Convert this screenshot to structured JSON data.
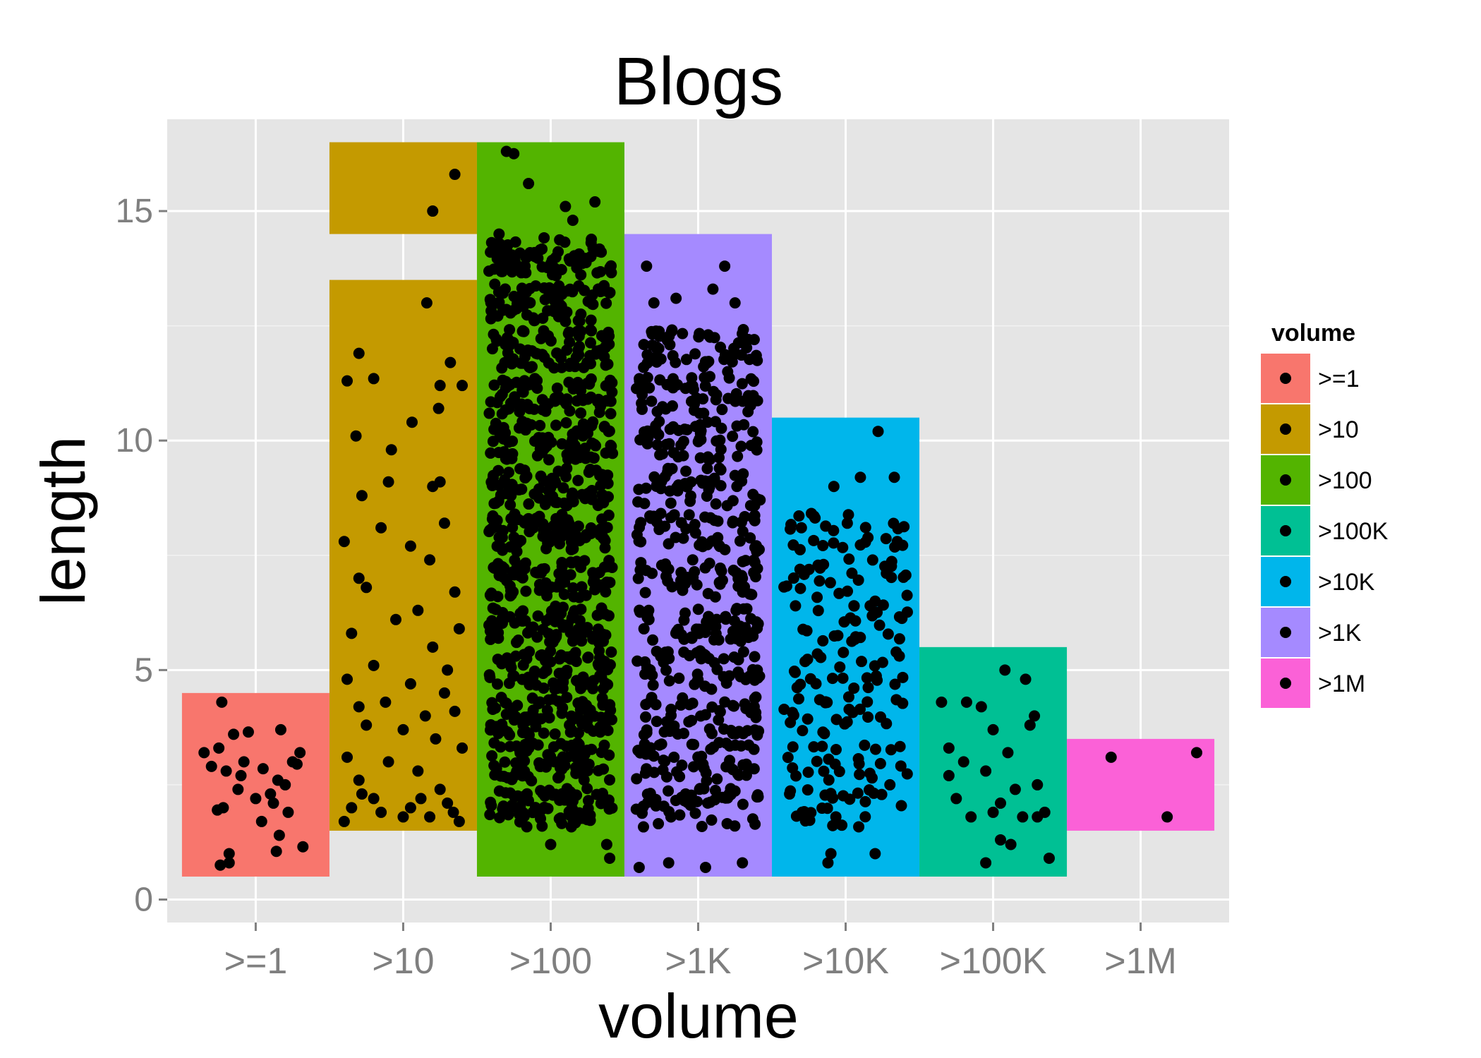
{
  "chart_data": {
    "type": "scatter",
    "title": "Blogs",
    "xlabel": "volume",
    "ylabel": "length",
    "ylim": [
      -0.5,
      17.0
    ],
    "yticks": [
      0,
      5,
      10,
      15
    ],
    "grid": true,
    "categories": [
      ">=1",
      ">10",
      ">100",
      ">1K",
      ">10K",
      ">100K",
      ">1M"
    ],
    "legend": {
      "title": "volume",
      "position": "right",
      "items": [
        {
          "label": ">=1",
          "color": "#F8766D"
        },
        {
          "label": ">10",
          "color": "#C49A00"
        },
        {
          "label": ">100",
          "color": "#53B400"
        },
        {
          "label": ">100K",
          "color": "#00C094"
        },
        {
          "label": ">10K",
          "color": "#00B6EB"
        },
        {
          "label": ">1K",
          "color": "#A58AFF"
        },
        {
          "label": ">1M",
          "color": "#FB61D7"
        }
      ]
    },
    "ranges": [
      {
        "category": ">=1",
        "color": "#F8766D",
        "blocks": [
          [
            0.5,
            4.5
          ]
        ],
        "density": 0
      },
      {
        "category": ">10",
        "color": "#C49A00",
        "blocks": [
          [
            1.5,
            13.5
          ],
          [
            14.5,
            16.5
          ]
        ],
        "density": 0
      },
      {
        "category": ">100",
        "color": "#53B400",
        "blocks": [
          [
            0.5,
            16.5
          ]
        ],
        "density": 3
      },
      {
        "category": ">1K",
        "color": "#A58AFF",
        "blocks": [
          [
            0.5,
            14.5
          ]
        ],
        "density": 2
      },
      {
        "category": ">10K",
        "color": "#00B6EB",
        "blocks": [
          [
            0.5,
            10.5
          ]
        ],
        "density": 1
      },
      {
        "category": ">100K",
        "color": "#00C094",
        "blocks": [
          [
            0.5,
            5.5
          ]
        ],
        "density": 0
      },
      {
        "category": ">1M",
        "color": "#FB61D7",
        "blocks": [
          [
            1.5,
            3.5
          ]
        ],
        "density": 0
      }
    ],
    "series": [
      {
        "category": ">=1",
        "points": [
          [
            -0.23,
            4.3
          ],
          [
            -0.35,
            3.2
          ],
          [
            -0.25,
            3.3
          ],
          [
            -0.15,
            3.6
          ],
          [
            -0.05,
            3.65
          ],
          [
            0.17,
            3.7
          ],
          [
            0.3,
            3.2
          ],
          [
            0.25,
            3.0
          ],
          [
            -0.3,
            2.9
          ],
          [
            -0.2,
            2.8
          ],
          [
            -0.1,
            2.7
          ],
          [
            0.05,
            2.85
          ],
          [
            0.15,
            2.6
          ],
          [
            0.28,
            2.95
          ],
          [
            -0.22,
            2.0
          ],
          [
            -0.12,
            2.4
          ],
          [
            0.0,
            2.2
          ],
          [
            0.12,
            2.1
          ],
          [
            0.22,
            1.9
          ],
          [
            -0.26,
            1.95
          ],
          [
            0.04,
            1.7
          ],
          [
            0.16,
            1.4
          ],
          [
            -0.18,
            1.0
          ],
          [
            0.14,
            1.05
          ],
          [
            0.32,
            1.15
          ],
          [
            -0.24,
            0.75
          ],
          [
            -0.18,
            0.8
          ],
          [
            0.1,
            2.3
          ],
          [
            -0.08,
            3.0
          ],
          [
            0.2,
            2.5
          ]
        ]
      },
      {
        "category": ">10",
        "points": [
          [
            0.35,
            15.8
          ],
          [
            0.2,
            15.0
          ],
          [
            0.16,
            13.0
          ],
          [
            -0.3,
            11.9
          ],
          [
            -0.38,
            11.3
          ],
          [
            -0.2,
            11.35
          ],
          [
            0.32,
            11.7
          ],
          [
            0.25,
            11.2
          ],
          [
            0.4,
            11.2
          ],
          [
            0.24,
            10.7
          ],
          [
            0.06,
            10.4
          ],
          [
            -0.32,
            10.1
          ],
          [
            -0.08,
            9.8
          ],
          [
            0.2,
            9.0
          ],
          [
            0.25,
            9.1
          ],
          [
            -0.28,
            8.8
          ],
          [
            -0.1,
            9.1
          ],
          [
            0.28,
            8.2
          ],
          [
            -0.4,
            7.8
          ],
          [
            -0.15,
            8.1
          ],
          [
            0.05,
            7.7
          ],
          [
            0.18,
            7.4
          ],
          [
            -0.3,
            7.0
          ],
          [
            0.35,
            6.7
          ],
          [
            0.1,
            6.3
          ],
          [
            -0.25,
            6.8
          ],
          [
            -0.05,
            6.1
          ],
          [
            0.38,
            5.9
          ],
          [
            -0.35,
            5.8
          ],
          [
            0.2,
            5.5
          ],
          [
            -0.2,
            5.1
          ],
          [
            0.3,
            5.0
          ],
          [
            -0.38,
            4.8
          ],
          [
            0.05,
            4.7
          ],
          [
            0.28,
            4.5
          ],
          [
            -0.3,
            4.2
          ],
          [
            -0.12,
            4.3
          ],
          [
            0.15,
            4.0
          ],
          [
            0.35,
            4.1
          ],
          [
            -0.25,
            3.8
          ],
          [
            0.0,
            3.7
          ],
          [
            0.22,
            3.5
          ],
          [
            -0.38,
            3.1
          ],
          [
            -0.1,
            3.0
          ],
          [
            0.4,
            3.3
          ],
          [
            0.1,
            2.8
          ],
          [
            -0.3,
            2.6
          ],
          [
            0.25,
            2.4
          ],
          [
            -0.2,
            2.2
          ],
          [
            0.05,
            2.0
          ],
          [
            0.3,
            2.1
          ],
          [
            -0.35,
            2.0
          ],
          [
            -0.15,
            1.9
          ],
          [
            0.18,
            1.8
          ],
          [
            0.38,
            1.7
          ],
          [
            -0.4,
            1.7
          ],
          [
            0.0,
            1.8
          ],
          [
            -0.28,
            2.3
          ],
          [
            0.12,
            2.2
          ],
          [
            0.34,
            1.9
          ]
        ]
      },
      {
        "category": ">100",
        "points": [
          [
            -0.3,
            16.3
          ],
          [
            -0.25,
            16.25
          ],
          [
            -0.15,
            15.6
          ],
          [
            0.3,
            15.2
          ],
          [
            0.1,
            15.1
          ],
          [
            0.15,
            14.8
          ],
          [
            -0.35,
            14.5
          ],
          [
            0.38,
            1.2
          ],
          [
            0.4,
            0.9
          ],
          [
            0.0,
            1.2
          ]
        ]
      },
      {
        "category": ">1K",
        "points": [
          [
            -0.35,
            13.8
          ],
          [
            0.18,
            13.8
          ],
          [
            0.1,
            13.3
          ],
          [
            -0.3,
            13.0
          ],
          [
            -0.15,
            13.1
          ],
          [
            0.25,
            13.0
          ],
          [
            0.38,
            12.2
          ],
          [
            -0.28,
            12.0
          ],
          [
            -0.38,
            11.0
          ],
          [
            0.2,
            11.5
          ],
          [
            -0.4,
            0.7
          ],
          [
            -0.2,
            0.8
          ],
          [
            0.05,
            0.7
          ],
          [
            0.3,
            0.8
          ]
        ]
      },
      {
        "category": ">10K",
        "points": [
          [
            0.22,
            10.2
          ],
          [
            -0.08,
            9.0
          ],
          [
            0.1,
            9.2
          ],
          [
            0.33,
            9.2
          ],
          [
            -0.3,
            8.1
          ],
          [
            0.35,
            7.8
          ],
          [
            -0.15,
            7.3
          ],
          [
            0.2,
            6.5
          ],
          [
            -0.1,
            1.0
          ],
          [
            -0.12,
            0.8
          ],
          [
            0.2,
            1.0
          ],
          [
            -0.38,
            2.3
          ],
          [
            0.3,
            2.5
          ]
        ]
      },
      {
        "category": ">100K",
        "points": [
          [
            -0.35,
            4.3
          ],
          [
            -0.18,
            4.3
          ],
          [
            -0.08,
            4.2
          ],
          [
            0.08,
            5.0
          ],
          [
            0.22,
            4.8
          ],
          [
            0.25,
            3.8
          ],
          [
            0.28,
            4.0
          ],
          [
            -0.3,
            3.3
          ],
          [
            -0.2,
            3.0
          ],
          [
            0.0,
            3.7
          ],
          [
            0.1,
            3.2
          ],
          [
            -0.05,
            2.8
          ],
          [
            0.15,
            2.4
          ],
          [
            0.3,
            2.5
          ],
          [
            -0.25,
            2.2
          ],
          [
            0.0,
            1.9
          ],
          [
            0.2,
            1.8
          ],
          [
            0.35,
            1.9
          ],
          [
            -0.15,
            1.8
          ],
          [
            0.05,
            1.3
          ],
          [
            0.12,
            1.2
          ],
          [
            0.38,
            0.9
          ],
          [
            0.3,
            1.8
          ],
          [
            -0.3,
            2.7
          ],
          [
            0.05,
            2.1
          ],
          [
            -0.05,
            0.8
          ]
        ]
      },
      {
        "category": ">1M",
        "points": [
          [
            -0.2,
            3.1
          ],
          [
            0.18,
            1.8
          ],
          [
            0.38,
            3.2
          ]
        ]
      }
    ]
  }
}
